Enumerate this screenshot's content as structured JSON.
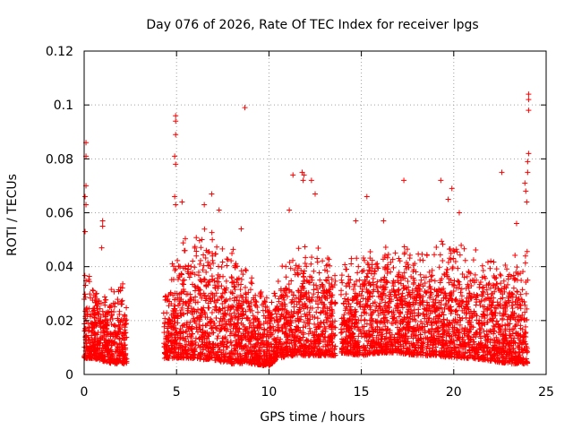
{
  "chart_data": {
    "type": "scatter",
    "title": "Day 076 of 2026, Rate Of TEC Index for receiver lpgs",
    "xlabel": "GPS time / hours",
    "ylabel": "ROTI / TECUs",
    "xlim": [
      0,
      25
    ],
    "ylim": [
      0,
      0.12
    ],
    "xticks": [
      "0",
      "5",
      "10",
      "15",
      "20",
      "25"
    ],
    "yticks": [
      "0",
      "0.02",
      "0.04",
      "0.06",
      "0.08",
      "0.1",
      "0.12"
    ],
    "grid": true,
    "marker": "+",
    "color": "#ff0000",
    "density_profile": [
      {
        "x": 0.0,
        "low": 0.006,
        "high": 0.045
      },
      {
        "x": 0.5,
        "low": 0.006,
        "high": 0.035
      },
      {
        "x": 1.0,
        "low": 0.005,
        "high": 0.03
      },
      {
        "x": 1.5,
        "low": 0.004,
        "high": 0.034
      },
      {
        "x": 2.2,
        "low": 0.004,
        "high": 0.036
      },
      {
        "x": 4.4,
        "low": 0.006,
        "high": 0.035
      },
      {
        "x": 5.0,
        "low": 0.006,
        "high": 0.05
      },
      {
        "x": 6.0,
        "low": 0.006,
        "high": 0.055
      },
      {
        "x": 7.0,
        "low": 0.005,
        "high": 0.055
      },
      {
        "x": 8.0,
        "low": 0.004,
        "high": 0.048
      },
      {
        "x": 9.0,
        "low": 0.004,
        "high": 0.04
      },
      {
        "x": 10.0,
        "low": 0.003,
        "high": 0.032
      },
      {
        "x": 10.5,
        "low": 0.006,
        "high": 0.04
      },
      {
        "x": 11.5,
        "low": 0.007,
        "high": 0.05
      },
      {
        "x": 12.5,
        "low": 0.007,
        "high": 0.05
      },
      {
        "x": 13.7,
        "low": 0.007,
        "high": 0.045
      },
      {
        "x": 14.0,
        "low": 0.008,
        "high": 0.045
      },
      {
        "x": 15.0,
        "low": 0.007,
        "high": 0.048
      },
      {
        "x": 16.0,
        "low": 0.008,
        "high": 0.05
      },
      {
        "x": 17.0,
        "low": 0.008,
        "high": 0.052
      },
      {
        "x": 18.0,
        "low": 0.007,
        "high": 0.05
      },
      {
        "x": 19.0,
        "low": 0.007,
        "high": 0.05
      },
      {
        "x": 20.0,
        "low": 0.006,
        "high": 0.052
      },
      {
        "x": 21.0,
        "low": 0.006,
        "high": 0.048
      },
      {
        "x": 22.0,
        "low": 0.005,
        "high": 0.045
      },
      {
        "x": 23.0,
        "low": 0.004,
        "high": 0.045
      },
      {
        "x": 24.0,
        "low": 0.004,
        "high": 0.05
      }
    ],
    "gaps": [
      [
        2.3,
        4.3
      ],
      [
        13.6,
        13.9
      ]
    ],
    "outliers": [
      {
        "x": 0.1,
        "y": 0.086
      },
      {
        "x": 0.1,
        "y": 0.081
      },
      {
        "x": 0.1,
        "y": 0.07
      },
      {
        "x": 0.05,
        "y": 0.066
      },
      {
        "x": 0.1,
        "y": 0.063
      },
      {
        "x": 0.05,
        "y": 0.053
      },
      {
        "x": 1.0,
        "y": 0.057
      },
      {
        "x": 1.0,
        "y": 0.055
      },
      {
        "x": 0.95,
        "y": 0.047
      },
      {
        "x": 4.95,
        "y": 0.096
      },
      {
        "x": 4.95,
        "y": 0.094
      },
      {
        "x": 4.95,
        "y": 0.089
      },
      {
        "x": 4.9,
        "y": 0.081
      },
      {
        "x": 4.95,
        "y": 0.078
      },
      {
        "x": 4.9,
        "y": 0.066
      },
      {
        "x": 4.95,
        "y": 0.063
      },
      {
        "x": 5.3,
        "y": 0.064
      },
      {
        "x": 6.5,
        "y": 0.063
      },
      {
        "x": 6.9,
        "y": 0.067
      },
      {
        "x": 7.3,
        "y": 0.061
      },
      {
        "x": 8.7,
        "y": 0.099
      },
      {
        "x": 8.5,
        "y": 0.054
      },
      {
        "x": 11.1,
        "y": 0.061
      },
      {
        "x": 11.3,
        "y": 0.074
      },
      {
        "x": 11.8,
        "y": 0.075
      },
      {
        "x": 11.9,
        "y": 0.074
      },
      {
        "x": 11.85,
        "y": 0.072
      },
      {
        "x": 12.3,
        "y": 0.072
      },
      {
        "x": 12.5,
        "y": 0.067
      },
      {
        "x": 14.7,
        "y": 0.057
      },
      {
        "x": 15.3,
        "y": 0.066
      },
      {
        "x": 16.2,
        "y": 0.057
      },
      {
        "x": 17.3,
        "y": 0.072
      },
      {
        "x": 19.3,
        "y": 0.072
      },
      {
        "x": 19.7,
        "y": 0.065
      },
      {
        "x": 19.9,
        "y": 0.069
      },
      {
        "x": 20.3,
        "y": 0.06
      },
      {
        "x": 22.6,
        "y": 0.075
      },
      {
        "x": 23.4,
        "y": 0.056
      },
      {
        "x": 23.85,
        "y": 0.071
      },
      {
        "x": 23.9,
        "y": 0.068
      },
      {
        "x": 23.95,
        "y": 0.064
      },
      {
        "x": 24.0,
        "y": 0.075
      },
      {
        "x": 24.0,
        "y": 0.079
      },
      {
        "x": 24.05,
        "y": 0.082
      },
      {
        "x": 24.05,
        "y": 0.104
      },
      {
        "x": 24.05,
        "y": 0.102
      },
      {
        "x": 24.05,
        "y": 0.098
      }
    ]
  }
}
